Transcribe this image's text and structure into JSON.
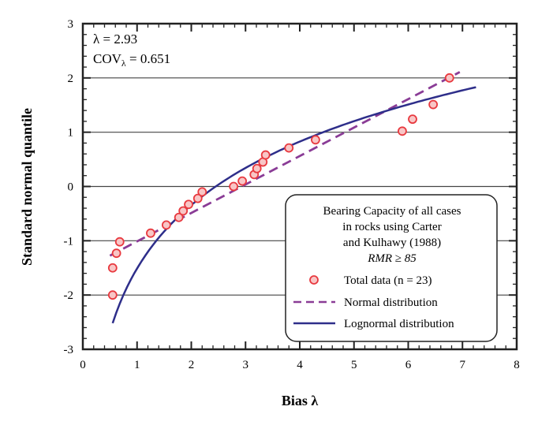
{
  "chart_data": {
    "type": "scatter",
    "xlabel": "Bias λ",
    "ylabel": "Standard normal quantile",
    "xlim": [
      0,
      8
    ],
    "ylim": [
      -3,
      3
    ],
    "xticks": [
      "0",
      "1",
      "2",
      "3",
      "4",
      "5",
      "6",
      "7",
      "8"
    ],
    "yticks": [
      "-3",
      "-2",
      "-1",
      "0",
      "1",
      "2",
      "3"
    ],
    "grid": "horizontal",
    "annotations": [
      "λ = 2.93",
      "COV",
      "λ",
      " = 0.651"
    ],
    "legend": {
      "placement": "bottom-right",
      "title": [
        "Bearing Capacity of all cases",
        "in rocks using Carter",
        "and Kulhawy (1988)",
        "RMR ≥ 85"
      ],
      "entries": [
        "Total data (n = 23)",
        "Normal distribution",
        "Lognormal distribution"
      ]
    },
    "series": [
      {
        "name": "Total data (n = 23)",
        "type": "scatter",
        "color": "#e8393f",
        "fill": "#f8c6c6",
        "x": [
          0.55,
          0.55,
          0.62,
          0.68,
          1.25,
          1.54,
          1.77,
          1.85,
          1.95,
          2.12,
          2.2,
          2.78,
          2.94,
          3.16,
          3.21,
          3.32,
          3.37,
          3.8,
          4.29,
          5.89,
          6.08,
          6.46,
          6.76
        ],
        "y": [
          -2.0,
          -1.5,
          -1.23,
          -1.02,
          -0.86,
          -0.71,
          -0.57,
          -0.45,
          -0.33,
          -0.22,
          -0.1,
          0.0,
          0.1,
          0.22,
          0.33,
          0.45,
          0.58,
          0.71,
          0.86,
          1.02,
          1.24,
          1.51,
          2.0
        ]
      },
      {
        "name": "Normal distribution",
        "type": "line",
        "style": "dashed",
        "color": "#8a3c96",
        "mean": 2.93,
        "sd": 1.907,
        "x_range": [
          0.5,
          6.95
        ]
      },
      {
        "name": "Lognormal distribution",
        "type": "line",
        "color": "#2e2e8a",
        "mu": 0.896,
        "sigma": 0.593,
        "x_range": [
          0.55,
          7.25
        ]
      }
    ]
  }
}
